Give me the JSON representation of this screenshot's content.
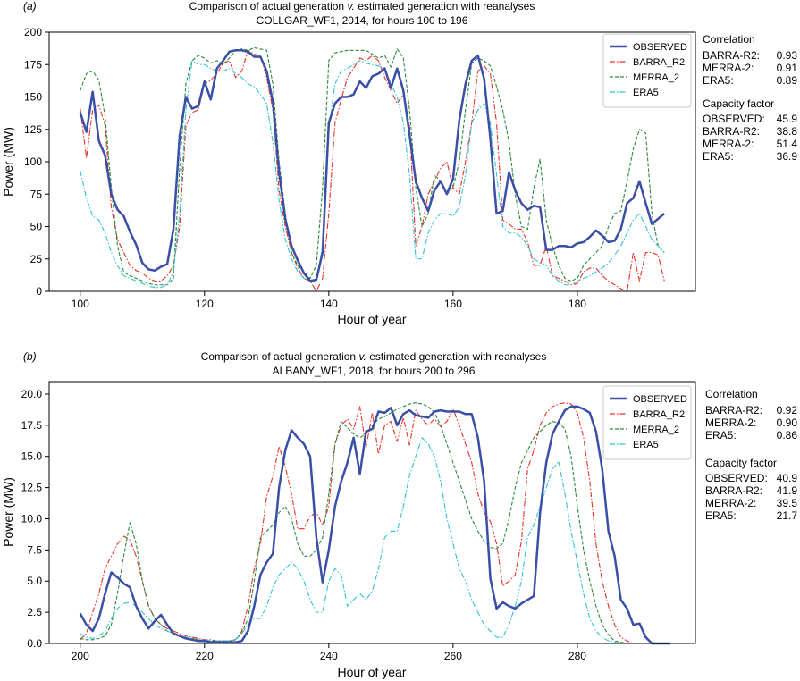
{
  "chart_data": [
    {
      "type": "line",
      "panel_label": "(a)",
      "title": "Comparison of actual generation v. estimated generation with reanalyses",
      "title_prefix": "Comparison of actual generation ",
      "title_italic": "v.",
      "title_suffix": " estimated generation with reanalyses",
      "subtitle": "COLLGAR_WF1, 2014, for hours 100 to 196",
      "xlabel": "Hour of year",
      "ylabel": "Power (MW)",
      "xlim": [
        95,
        199
      ],
      "ylim": [
        0,
        200
      ],
      "xticks": [
        100,
        120,
        140,
        160,
        180
      ],
      "yticks": [
        0,
        25,
        50,
        75,
        100,
        125,
        150,
        175,
        200
      ],
      "ytick_labels": [
        "0",
        "25",
        "50",
        "75",
        "100",
        "125",
        "150",
        "175",
        "200"
      ],
      "x_start": 100,
      "series": [
        {
          "name": "OBSERVED",
          "color": "#3a4fa5",
          "style": "solid",
          "values": [
            138,
            123,
            154,
            116,
            105,
            75,
            63,
            58,
            46,
            36,
            22,
            17,
            16,
            19,
            21,
            48,
            120,
            150,
            141,
            143,
            162,
            148,
            172,
            178,
            185,
            186,
            186,
            185,
            181,
            181,
            170,
            146,
            92,
            56,
            35,
            24,
            14,
            8,
            9,
            30,
            130,
            145,
            150,
            150,
            152,
            162,
            157,
            166,
            168,
            172,
            157,
            172,
            155,
            121,
            85,
            72,
            62,
            78,
            85,
            75,
            87,
            132,
            160,
            178,
            182,
            164,
            118,
            60,
            62,
            92,
            78,
            68,
            63,
            66,
            65,
            32,
            32,
            35,
            35,
            34,
            37,
            38,
            42,
            47,
            43,
            38,
            39,
            48,
            68,
            72,
            85,
            68,
            52,
            56,
            60
          ]
        },
        {
          "name": "BARRA_R2",
          "color": "#e8312a",
          "style": "dashdot",
          "values": [
            141,
            103,
            140,
            144,
            128,
            65,
            40,
            30,
            20,
            16,
            14,
            10,
            8,
            8,
            12,
            20,
            50,
            128,
            138,
            140,
            160,
            163,
            168,
            176,
            178,
            165,
            170,
            186,
            183,
            182,
            165,
            140,
            78,
            50,
            30,
            18,
            10,
            8,
            0,
            10,
            60,
            130,
            148,
            165,
            172,
            180,
            178,
            182,
            178,
            165,
            155,
            145,
            152,
            128,
            35,
            50,
            75,
            85,
            95,
            100,
            80,
            75,
            100,
            130,
            170,
            174,
            168,
            130,
            55,
            52,
            48,
            48,
            38,
            20,
            20,
            35,
            12,
            10,
            8,
            5,
            6,
            15,
            18,
            18,
            12,
            8,
            5,
            2,
            0,
            30,
            8,
            30,
            30,
            28,
            8
          ]
        },
        {
          "name": "MERRA_2",
          "color": "#2a8a3a",
          "style": "dashed",
          "values": [
            155,
            168,
            170,
            163,
            135,
            80,
            35,
            15,
            12,
            10,
            8,
            6,
            5,
            5,
            5,
            10,
            95,
            160,
            178,
            182,
            180,
            176,
            178,
            175,
            180,
            186,
            187,
            186,
            188,
            187,
            186,
            160,
            100,
            60,
            30,
            20,
            15,
            10,
            20,
            80,
            178,
            184,
            185,
            186,
            186,
            186,
            186,
            183,
            180,
            182,
            173,
            187,
            180,
            140,
            80,
            50,
            60,
            90,
            85,
            75,
            80,
            100,
            140,
            176,
            180,
            178,
            174,
            158,
            140,
            115,
            75,
            50,
            48,
            80,
            102,
            55,
            35,
            20,
            10,
            8,
            10,
            20,
            25,
            30,
            35,
            50,
            60,
            62,
            85,
            110,
            125,
            122,
            60,
            35,
            30
          ]
        },
        {
          "name": "ERA5",
          "color": "#2ec4d6",
          "style": "dashdot",
          "values": [
            93,
            72,
            58,
            55,
            45,
            30,
            20,
            12,
            10,
            8,
            6,
            4,
            3,
            3,
            5,
            15,
            60,
            140,
            178,
            175,
            175,
            172,
            170,
            170,
            172,
            168,
            165,
            160,
            158,
            152,
            145,
            115,
            70,
            40,
            25,
            15,
            10,
            8,
            8,
            35,
            125,
            160,
            170,
            172,
            175,
            178,
            176,
            175,
            174,
            172,
            160,
            150,
            130,
            90,
            25,
            25,
            45,
            55,
            60,
            60,
            58,
            65,
            90,
            130,
            140,
            145,
            130,
            90,
            50,
            45,
            45,
            42,
            35,
            25,
            22,
            20,
            12,
            8,
            5,
            5,
            8,
            10,
            12,
            15,
            18,
            22,
            28,
            35,
            45,
            55,
            60,
            50,
            40,
            35,
            30
          ]
        }
      ],
      "correlation_title": "Correlation",
      "correlation": [
        {
          "label": "BARRA-R2:",
          "value": "0.93"
        },
        {
          "label": "MERRA-2:",
          "value": "0.91"
        },
        {
          "label": "ERA5:",
          "value": "0.89"
        }
      ],
      "capacity_title": "Capacity factor",
      "capacity": [
        {
          "label": "OBSERVED:",
          "value": "45.9"
        },
        {
          "label": "BARRA-R2:",
          "value": "38.8"
        },
        {
          "label": "MERRA-2:",
          "value": "51.4"
        },
        {
          "label": "ERA5:",
          "value": "36.9"
        }
      ]
    },
    {
      "type": "line",
      "panel_label": "(b)",
      "title": "Comparison of actual generation v. estimated generation with reanalyses",
      "title_prefix": "Comparison of actual generation ",
      "title_italic": "v.",
      "title_suffix": " estimated generation with reanalyses",
      "subtitle": "ALBANY_WF1, 2018, for hours 200 to 296",
      "xlabel": "Hour of year",
      "ylabel": "Power (MW)",
      "xlim": [
        195,
        299
      ],
      "ylim": [
        0,
        21
      ],
      "xticks": [
        200,
        220,
        240,
        260,
        280
      ],
      "yticks": [
        0,
        2.5,
        5,
        7.5,
        10,
        12.5,
        15,
        17.5,
        20
      ],
      "ytick_labels": [
        "0.0",
        "2.5",
        "5.0",
        "7.5",
        "10.0",
        "12.5",
        "15.0",
        "17.5",
        "20.0"
      ],
      "x_start": 200,
      "series": [
        {
          "name": "OBSERVED",
          "color": "#3a4fa5",
          "style": "solid",
          "values": [
            2.4,
            1.5,
            1.0,
            2.0,
            4.0,
            5.7,
            5.3,
            4.8,
            4.5,
            3.0,
            2.0,
            1.2,
            1.8,
            2.3,
            1.5,
            0.8,
            0.6,
            0.4,
            0.3,
            0.2,
            0.2,
            0.1,
            0.1,
            0.1,
            0.1,
            0.1,
            0.2,
            1.0,
            3.0,
            5.5,
            6.5,
            7.2,
            12.5,
            15.5,
            17.1,
            16.5,
            16.0,
            15.0,
            8.5,
            4.9,
            7.5,
            11.0,
            13.0,
            14.5,
            16.5,
            13.6,
            17.0,
            17.2,
            18.6,
            18.5,
            18.9,
            17.5,
            18.4,
            18.7,
            18.3,
            18.2,
            18.1,
            18.6,
            18.7,
            18.6,
            18.6,
            18.6,
            18.4,
            18.4,
            16.5,
            13.0,
            5.2,
            2.8,
            3.3,
            3.0,
            2.8,
            3.2,
            3.5,
            3.8,
            10.5,
            14.5,
            16.8,
            17.8,
            18.7,
            19.0,
            19.0,
            18.8,
            18.5,
            17.0,
            14.0,
            9.0,
            7.0,
            3.5,
            2.8,
            1.5,
            1.6,
            0.5,
            0.0,
            0.0,
            0.0,
            0.0
          ]
        },
        {
          "name": "BARRA_R2",
          "color": "#e8312a",
          "style": "dashdot",
          "values": [
            0.3,
            0.8,
            2.5,
            4.0,
            6.0,
            7.0,
            8.0,
            8.6,
            8.3,
            7.0,
            5.0,
            3.0,
            2.0,
            1.5,
            1.2,
            1.0,
            0.8,
            0.6,
            0.5,
            0.4,
            0.3,
            0.3,
            0.2,
            0.2,
            0.2,
            0.3,
            1.0,
            3.0,
            6.0,
            8.0,
            11.8,
            13.4,
            15.8,
            14.2,
            12.0,
            9.2,
            9.2,
            10.2,
            10.5,
            9.5,
            11.0,
            16.0,
            17.5,
            18.0,
            17.2,
            19.0,
            15.7,
            18.5,
            15.2,
            17.5,
            17.8,
            16.2,
            18.1,
            15.9,
            18.7,
            18.0,
            17.5,
            18.0,
            17.4,
            17.8,
            18.8,
            17.5,
            16.0,
            14.5,
            12.0,
            10.5,
            9.8,
            8.0,
            4.6,
            5.0,
            5.5,
            8.2,
            14.0,
            15.5,
            17.5,
            18.5,
            19.0,
            19.2,
            19.3,
            19.2,
            18.5,
            16.5,
            13.0,
            8.0,
            5.0,
            3.0,
            1.5,
            0.5,
            0.2,
            0.0,
            0.0,
            0.0
          ]
        },
        {
          "name": "MERRA_2",
          "color": "#2a8a3a",
          "style": "dashed",
          "values": [
            0.4,
            0.3,
            0.3,
            0.4,
            0.6,
            1.5,
            4.0,
            7.0,
            9.7,
            8.0,
            5.0,
            3.0,
            2.0,
            1.5,
            1.0,
            0.8,
            0.6,
            0.5,
            0.4,
            0.3,
            0.2,
            0.2,
            0.2,
            0.2,
            0.2,
            0.3,
            0.8,
            2.0,
            5.0,
            8.5,
            9.0,
            9.5,
            10.5,
            11.0,
            10.0,
            8.0,
            7.0,
            7.0,
            7.5,
            8.5,
            12.0,
            16.0,
            17.8,
            17.3,
            16.8,
            16.5,
            16.8,
            17.5,
            18.0,
            18.2,
            18.5,
            18.8,
            19.0,
            19.2,
            19.3,
            19.2,
            19.0,
            18.5,
            17.5,
            16.0,
            14.5,
            13.0,
            11.5,
            10.0,
            9.0,
            8.2,
            7.7,
            7.6,
            8.0,
            10.0,
            12.5,
            14.5,
            15.5,
            16.5,
            17.0,
            17.5,
            17.8,
            17.7,
            17.2,
            15.0,
            11.0,
            7.5,
            5.0,
            3.0,
            1.5,
            0.7,
            0.2,
            0.1,
            0.0,
            0.0,
            0.0,
            0.0
          ]
        },
        {
          "name": "ERA5",
          "color": "#2ec4d6",
          "style": "dashdot",
          "values": [
            0.8,
            0.5,
            0.4,
            0.6,
            1.0,
            2.0,
            2.8,
            3.2,
            3.3,
            3.0,
            2.5,
            2.0,
            1.5,
            1.2,
            1.0,
            0.8,
            0.6,
            0.5,
            0.4,
            0.3,
            0.3,
            0.2,
            0.2,
            0.2,
            0.2,
            0.3,
            0.8,
            1.5,
            2.0,
            2.0,
            3.0,
            4.5,
            5.5,
            6.0,
            6.5,
            6.0,
            5.0,
            3.5,
            2.5,
            2.5,
            5.0,
            6.0,
            5.5,
            3.0,
            3.5,
            4.0,
            3.5,
            4.2,
            6.0,
            8.5,
            9.0,
            9.0,
            11.0,
            13.5,
            15.0,
            16.5,
            16.0,
            15.0,
            13.0,
            10.0,
            8.0,
            6.0,
            5.0,
            3.5,
            2.5,
            1.5,
            1.0,
            0.5,
            0.5,
            1.5,
            3.0,
            5.0,
            8.5,
            9.5,
            11.0,
            12.5,
            14.0,
            14.6,
            12.0,
            9.0,
            6.5,
            4.0,
            2.0,
            1.0,
            0.5,
            0.2,
            0.1,
            0.0,
            0.0,
            0.0,
            0.0,
            0.0
          ]
        }
      ],
      "correlation_title": "Correlation",
      "correlation": [
        {
          "label": "BARRA-R2:",
          "value": "0.92"
        },
        {
          "label": "MERRA-2:",
          "value": "0.90"
        },
        {
          "label": "ERA5:",
          "value": "0.86"
        }
      ],
      "capacity_title": "Capacity factor",
      "capacity": [
        {
          "label": "OBSERVED:",
          "value": "40.9"
        },
        {
          "label": "BARRA-R2:",
          "value": "41.9"
        },
        {
          "label": "MERRA-2:",
          "value": "39.5"
        },
        {
          "label": "ERA5:",
          "value": "21.7"
        }
      ]
    }
  ]
}
